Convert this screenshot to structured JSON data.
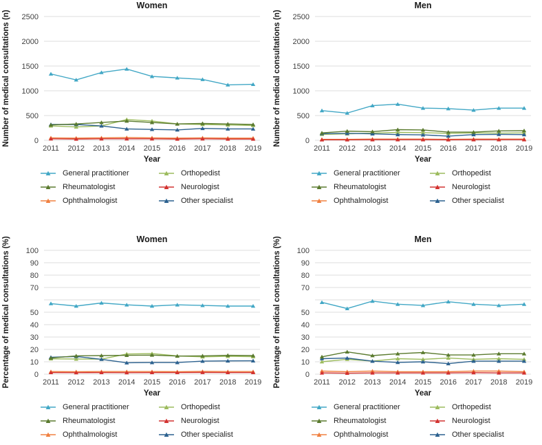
{
  "axis": {
    "xlabel": "Year",
    "count_ylabel": "Number of medical consultations (n)",
    "percent_ylabel": "Percentage of medical consultations (%)"
  },
  "legend_columns": [
    [
      "General practitioner",
      "Rheumatologist",
      "Ophthalmologist"
    ],
    [
      "Orthopedist",
      "Neurologist",
      "Other specialist"
    ]
  ],
  "series_colors": {
    "General practitioner": "#41a7c5",
    "Rheumatologist": "#5a7a2e",
    "Ophthalmologist": "#f08040",
    "Orthopedist": "#9cbb5d",
    "Neurologist": "#d23230",
    "Other specialist": "#2c618f"
  },
  "gridline_color": "#dcdcdc",
  "chart_data": [
    {
      "type": "line",
      "panel": "top-left",
      "title": "Women",
      "xlabel": "Year",
      "ylabel": "Number of medical consultations (n)",
      "x": [
        "2011",
        "2012",
        "2013",
        "2014",
        "2015",
        "2016",
        "2017",
        "2018",
        "2019"
      ],
      "ylim": [
        0,
        2500
      ],
      "yticks": [
        0,
        500,
        1000,
        1500,
        2000,
        2500
      ],
      "ytick_labels": [
        "0",
        "500",
        "1000",
        "1500",
        "2000",
        "2500"
      ],
      "grid": "horizontal",
      "legend_position": "below",
      "series": [
        {
          "name": "General practitioner",
          "values": [
            1340,
            1220,
            1370,
            1440,
            1290,
            1260,
            1230,
            1120,
            1130
          ]
        },
        {
          "name": "Rheumatologist",
          "values": [
            310,
            330,
            360,
            390,
            360,
            330,
            340,
            330,
            320
          ]
        },
        {
          "name": "Ophthalmologist",
          "values": [
            50,
            45,
            50,
            55,
            50,
            45,
            50,
            45,
            45
          ]
        },
        {
          "name": "Orthopedist",
          "values": [
            290,
            270,
            290,
            420,
            390,
            330,
            320,
            310,
            300
          ]
        },
        {
          "name": "Neurologist",
          "values": [
            30,
            25,
            30,
            30,
            30,
            25,
            30,
            25,
            25
          ]
        },
        {
          "name": "Other specialist",
          "values": [
            320,
            320,
            290,
            230,
            220,
            210,
            240,
            230,
            230
          ]
        }
      ]
    },
    {
      "type": "line",
      "panel": "top-right",
      "title": "Men",
      "xlabel": "Year",
      "ylabel": "Number of medical consultations (n)",
      "x": [
        "2011",
        "2012",
        "2013",
        "2014",
        "2015",
        "2016",
        "2017",
        "2018",
        "2019"
      ],
      "ylim": [
        0,
        2500
      ],
      "yticks": [
        0,
        500,
        1000,
        1500,
        2000,
        2500
      ],
      "ytick_labels": [
        "0",
        "500",
        "1000",
        "1500",
        "2000",
        "2500"
      ],
      "grid": "horizontal",
      "legend_position": "below",
      "series": [
        {
          "name": "General practitioner",
          "values": [
            600,
            550,
            700,
            730,
            650,
            640,
            610,
            650,
            650
          ]
        },
        {
          "name": "Rheumatologist",
          "values": [
            150,
            185,
            175,
            215,
            210,
            165,
            165,
            190,
            195
          ]
        },
        {
          "name": "Ophthalmologist",
          "values": [
            20,
            20,
            25,
            25,
            25,
            20,
            25,
            25,
            25
          ]
        },
        {
          "name": "Orthopedist",
          "values": [
            120,
            130,
            145,
            160,
            155,
            140,
            150,
            145,
            150
          ]
        },
        {
          "name": "Neurologist",
          "values": [
            10,
            10,
            12,
            12,
            12,
            10,
            12,
            12,
            12
          ]
        },
        {
          "name": "Other specialist",
          "values": [
            135,
            140,
            130,
            115,
            110,
            85,
            115,
            120,
            115
          ]
        }
      ]
    },
    {
      "type": "line",
      "panel": "bottom-left",
      "title": "Women",
      "xlabel": "Year",
      "ylabel": "Percentage of medical consultations (%)",
      "x": [
        "2011",
        "2012",
        "2013",
        "2014",
        "2015",
        "2016",
        "2017",
        "2018",
        "2019"
      ],
      "ylim": [
        0,
        100
      ],
      "yticks": [
        0,
        10,
        20,
        30,
        40,
        50,
        60,
        70,
        80,
        90,
        100
      ],
      "ytick_labels": [
        "0",
        "10",
        "20",
        "30",
        "40",
        "50",
        "",
        "70",
        "80",
        "90",
        "100"
      ],
      "grid": "horizontal",
      "legend_position": "below",
      "series": [
        {
          "name": "General practitioner",
          "values": [
            57,
            55,
            57.5,
            56,
            55,
            56,
            55.5,
            55,
            55
          ]
        },
        {
          "name": "Rheumatologist",
          "values": [
            13,
            14.8,
            15,
            15.2,
            15.4,
            14.6,
            14.8,
            15.2,
            15
          ]
        },
        {
          "name": "Ophthalmologist",
          "values": [
            2.1,
            2,
            2.1,
            2.1,
            2.1,
            2,
            2.2,
            2.1,
            2.1
          ]
        },
        {
          "name": "Orthopedist",
          "values": [
            12.4,
            12.2,
            12.1,
            16.3,
            16.6,
            14.7,
            14,
            14.4,
            14.1
          ]
        },
        {
          "name": "Neurologist",
          "values": [
            1.3,
            1.2,
            1.3,
            1.2,
            1.3,
            1.3,
            1.4,
            1.3,
            1.3
          ]
        },
        {
          "name": "Other specialist",
          "values": [
            13.6,
            14.3,
            12,
            9.2,
            9.4,
            9.4,
            10.5,
            10.7,
            10.8
          ]
        }
      ]
    },
    {
      "type": "line",
      "panel": "bottom-right",
      "title": "Men",
      "xlabel": "Year",
      "ylabel": "Percentage of medical consultations (%)",
      "x": [
        "2011",
        "2012",
        "2013",
        "2014",
        "2015",
        "2016",
        "2017",
        "2018",
        "2019"
      ],
      "ylim": [
        0,
        100
      ],
      "yticks": [
        0,
        10,
        20,
        30,
        40,
        50,
        60,
        70,
        80,
        90,
        100
      ],
      "ytick_labels": [
        "0",
        "10",
        "20",
        "30",
        "40",
        "50",
        "",
        "70",
        "80",
        "90",
        "100"
      ],
      "grid": "horizontal",
      "legend_position": "below",
      "series": [
        {
          "name": "General practitioner",
          "values": [
            58,
            53,
            59,
            56.5,
            55.5,
            58.5,
            56.5,
            55.5,
            56.5
          ]
        },
        {
          "name": "Rheumatologist",
          "values": [
            14,
            18,
            15,
            16.5,
            17.5,
            15.5,
            15.5,
            16.5,
            16.5
          ]
        },
        {
          "name": "Ophthalmologist",
          "values": [
            2.5,
            2,
            2.5,
            2,
            2,
            2,
            2.5,
            2.5,
            2
          ]
        },
        {
          "name": "Orthopedist",
          "values": [
            10,
            12,
            10.5,
            12.5,
            12,
            13,
            12,
            12.5,
            12
          ]
        },
        {
          "name": "Neurologist",
          "values": [
            1,
            0.8,
            1,
            1,
            1,
            1,
            1.2,
            1,
            1
          ]
        },
        {
          "name": "Other specialist",
          "values": [
            12.5,
            13,
            10.5,
            9.5,
            10,
            8.5,
            10.5,
            10.5,
            10.5
          ]
        }
      ]
    }
  ]
}
